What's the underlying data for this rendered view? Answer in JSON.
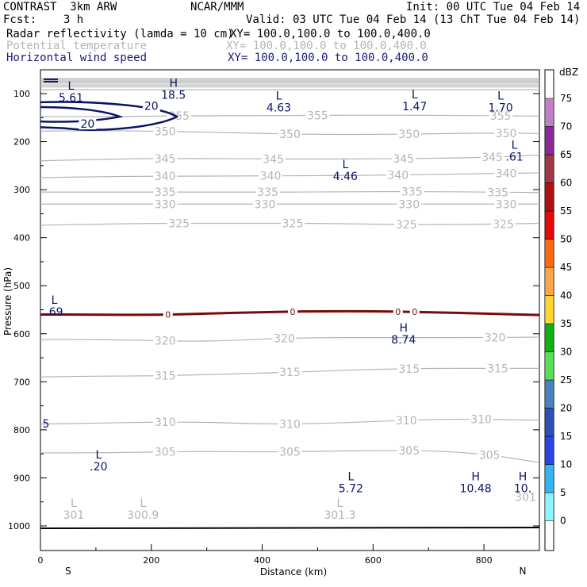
{
  "header": {
    "left1": "CONTRAST  3km ARW",
    "center1": "NCAR/MMM",
    "right1": "Init: 00 UTC Tue 04 Feb 14",
    "left2": "Fcst:    3 h",
    "right2": "Valid: 03 UTC Tue 04 Feb 14 (13 ChT Tue 04 Feb 14)",
    "field1_name": "Radar reflectivity (lamda = 10 cm)",
    "field1_xy": "XY= 100.0,100.0 to 100.0,400.0",
    "field2_name": "Potential temperature",
    "field2_xy": "XY= 100.0,100.0 to 100.0,400.0",
    "field3_name": "Horizontal wind speed",
    "field3_xy": "XY= 100.0,100.0 to 100.0,400.0"
  },
  "colors": {
    "theta": "#b4b4b4",
    "wind": "#0a1464",
    "freezing": "#7a0a0a",
    "ground": "#000000"
  },
  "chart_data": {
    "type": "contour-cross-section",
    "xlabel": "Distance (km)",
    "ylabel": "Pressure (hPa)",
    "xlim": [
      0,
      900
    ],
    "ylim": [
      1050,
      60
    ],
    "xticks": [
      0,
      200,
      400,
      600,
      800
    ],
    "yticks": [
      100,
      200,
      300,
      400,
      500,
      600,
      700,
      800,
      900,
      1000
    ],
    "x_end_labels": [
      "S",
      "N"
    ],
    "theta_contours": [
      {
        "value": 355,
        "y": [
          148,
          148,
          147,
          146,
          146,
          145,
          145,
          145,
          146,
          147
        ],
        "label": "355",
        "label_x": [
          250,
          500,
          830
        ]
      },
      {
        "value": 350,
        "y": [
          178,
          177,
          178,
          180,
          183,
          185,
          185,
          184,
          182,
          183
        ],
        "label": "350",
        "label_x": [
          225,
          450,
          665,
          840
        ]
      },
      {
        "value": 345,
        "y": [
          240,
          237,
          235,
          235,
          236,
          236,
          236,
          235,
          233,
          228
        ],
        "label": "345",
        "label_x": [
          225,
          420,
          655,
          815
        ]
      },
      {
        "value": 340,
        "y": [
          275,
          273,
          272,
          272,
          271,
          271,
          270,
          268,
          267,
          265
        ],
        "label": "340",
        "label_x": [
          225,
          415,
          645,
          840
        ]
      },
      {
        "value": 335,
        "y": [
          305,
          305,
          305,
          305,
          305,
          305,
          304,
          304,
          305,
          306
        ],
        "label": "335",
        "label_x": [
          225,
          410,
          670,
          825
        ]
      },
      {
        "value": 330,
        "y": [
          330,
          330,
          330,
          330,
          330,
          330,
          330,
          330,
          330,
          330
        ],
        "label": "330",
        "label_x": [
          225,
          405,
          665,
          840
        ]
      },
      {
        "value": 325,
        "y": [
          374,
          372,
          370,
          370,
          370,
          370,
          372,
          373,
          372,
          370
        ],
        "label": "325",
        "label_x": [
          250,
          455,
          660,
          835
        ]
      },
      {
        "value": 320,
        "y": [
          612,
          612,
          614,
          616,
          611,
          608,
          608,
          608,
          608,
          607
        ],
        "label": "320",
        "label_x": [
          225,
          440,
          820
        ]
      },
      {
        "value": 315,
        "y": [
          690,
          688,
          688,
          685,
          682,
          678,
          674,
          672,
          672,
          672
        ],
        "label": "315",
        "label_x": [
          225,
          450,
          665,
          825
        ]
      },
      {
        "value": 310,
        "y": [
          788,
          786,
          784,
          784,
          788,
          787,
          783,
          778,
          778,
          780
        ],
        "label": "310",
        "label_x": [
          225,
          450,
          660,
          795
        ]
      },
      {
        "value": 305,
        "y": [
          848,
          848,
          846,
          845,
          846,
          845,
          843,
          843,
          850,
          868
        ],
        "label": "305",
        "label_x": [
          225,
          450,
          665,
          810
        ]
      },
      {
        "value": 360,
        "y": [
          92,
          92,
          92,
          92,
          92,
          92,
          92,
          92,
          92,
          92
        ],
        "label": "",
        "label_x": []
      },
      {
        "value": 365,
        "y": [
          86,
          86,
          86,
          86,
          86,
          86,
          86,
          86,
          86,
          86
        ],
        "label": "",
        "label_x": []
      },
      {
        "value": 370,
        "y": [
          82,
          82,
          82,
          82,
          82,
          82,
          82,
          82,
          82,
          82
        ],
        "label": "",
        "label_x": []
      },
      {
        "value": 375,
        "y": [
          78,
          78,
          78,
          78,
          78,
          78,
          78,
          78,
          78,
          78
        ],
        "label": "",
        "label_x": []
      },
      {
        "value": 380,
        "y": [
          75,
          75,
          75,
          75,
          75,
          75,
          75,
          75,
          75,
          75
        ],
        "label": "",
        "label_x": []
      },
      {
        "value": 385,
        "y": [
          72,
          72,
          72,
          72,
          72,
          72,
          72,
          72,
          72,
          72
        ],
        "label": "",
        "label_x": []
      },
      {
        "value": 390,
        "y": [
          69,
          69,
          69,
          69,
          69,
          69,
          69,
          69,
          69,
          69
        ],
        "label": "",
        "label_x": []
      }
    ],
    "theta_x": [
      0,
      100,
      200,
      300,
      400,
      500,
      600,
      700,
      800,
      900
    ],
    "freezing_level": {
      "value": "0",
      "x": [
        0,
        100,
        200,
        300,
        400,
        500,
        600,
        700,
        800,
        900
      ],
      "y": [
        560,
        560,
        561,
        558,
        555,
        553,
        553,
        555,
        558,
        561
      ],
      "label_x": [
        230,
        455,
        645,
        675
      ]
    },
    "wind_contours": [
      {
        "value": 20,
        "label": "20",
        "label_positions": [
          [
            200,
            126
          ],
          [
            85,
            163
          ]
        ]
      }
    ],
    "extrema": [
      {
        "type": "L",
        "value": "5.61",
        "x": 55,
        "p": 92,
        "series": "wind"
      },
      {
        "type": "H",
        "value": "18.5",
        "x": 240,
        "p": 86,
        "series": "wind"
      },
      {
        "type": "L",
        "value": "4.63",
        "x": 430,
        "p": 112,
        "series": "wind"
      },
      {
        "type": "L",
        "value": "1.47",
        "x": 675,
        "p": 110,
        "series": "wind"
      },
      {
        "type": "L",
        "value": "1.70",
        "x": 830,
        "p": 112,
        "series": "wind"
      },
      {
        "type": "L",
        "value": ".61",
        "x": 855,
        "p": 215,
        "series": "wind"
      },
      {
        "type": "L",
        "value": "4.46",
        "x": 550,
        "p": 255,
        "series": "wind"
      },
      {
        "type": "L",
        "value": ".69",
        "x": 25,
        "p": 538,
        "series": "wind"
      },
      {
        "type": "H",
        "value": "8.74",
        "x": 655,
        "p": 595,
        "series": "wind"
      },
      {
        "type": "",
        "value": "5",
        "x": 10,
        "p": 787,
        "series": "wind"
      },
      {
        "type": "L",
        "value": ".20",
        "x": 105,
        "p": 860,
        "series": "wind"
      },
      {
        "type": "L",
        "value": "5.72",
        "x": 560,
        "p": 905,
        "series": "wind"
      },
      {
        "type": "H",
        "value": "10.48",
        "x": 785,
        "p": 905,
        "series": "wind"
      },
      {
        "type": "H",
        "value": "10.",
        "x": 870,
        "p": 905,
        "series": "wind"
      },
      {
        "type": "L",
        "value": "301",
        "x": 60,
        "p": 960,
        "series": "theta"
      },
      {
        "type": "L",
        "value": "300.9",
        "x": 185,
        "p": 960,
        "series": "theta"
      },
      {
        "type": "L",
        "value": "301.3",
        "x": 540,
        "p": 960,
        "series": "theta"
      },
      {
        "type": "",
        "value": "301",
        "x": 875,
        "p": 940,
        "series": "theta"
      }
    ],
    "ground_pressure": 1005,
    "colorbar": {
      "unit": "dBZ",
      "levels": [
        "0",
        "5",
        "10",
        "15",
        "20",
        "25",
        "30",
        "35",
        "40",
        "45",
        "50",
        "55",
        "60",
        "65",
        "70",
        "75"
      ],
      "colors": [
        "#ffffff",
        "#8ff2ff",
        "#36b4f0",
        "#2b44e6",
        "#2f4fb9",
        "#4a82bb",
        "#55e055",
        "#10b010",
        "#ffd530",
        "#f8a848",
        "#fa6a10",
        "#e80808",
        "#b01010",
        "#a03848",
        "#8a2a96",
        "#c080c8"
      ]
    }
  }
}
